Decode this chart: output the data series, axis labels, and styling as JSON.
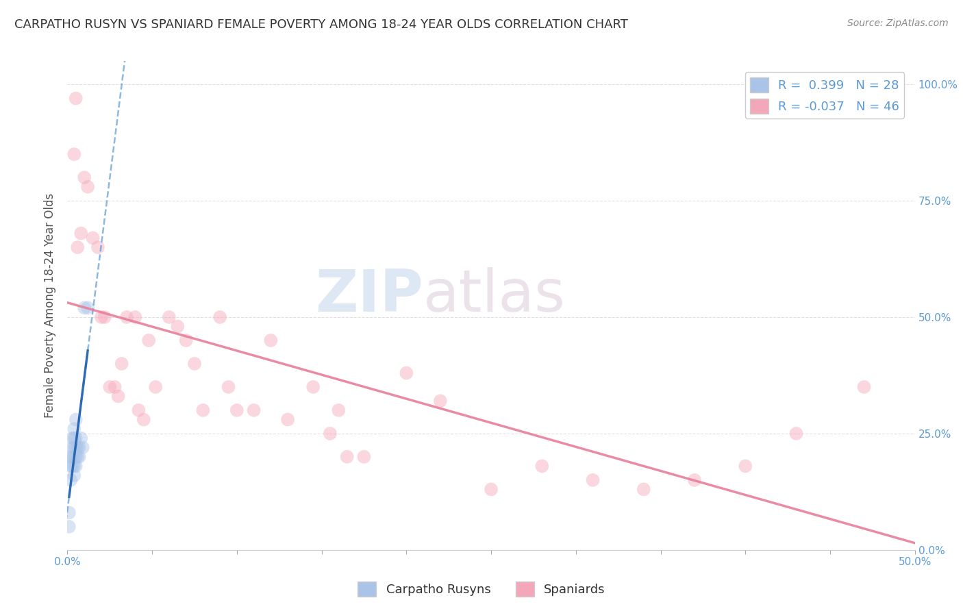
{
  "title": "CARPATHO RUSYN VS SPANIARD FEMALE POVERTY AMONG 18-24 YEAR OLDS CORRELATION CHART",
  "source": "Source: ZipAtlas.com",
  "ylabel": "Female Poverty Among 18-24 Year Olds",
  "xlim": [
    0.0,
    0.5
  ],
  "ylim": [
    0.0,
    1.05
  ],
  "xticks": [
    0.0,
    0.05,
    0.1,
    0.15,
    0.2,
    0.25,
    0.3,
    0.35,
    0.4,
    0.45,
    0.5
  ],
  "xticklabels_show": {
    "0.0": "0.0%",
    "0.5": "50.0%"
  },
  "yticks": [
    0.0,
    0.25,
    0.5,
    0.75,
    1.0
  ],
  "yticklabels_right": [
    "0.0%",
    "25.0%",
    "50.0%",
    "75.0%",
    "100.0%"
  ],
  "carpatho_rusyns": {
    "color": "#aac4e8",
    "x": [
      0.001,
      0.001,
      0.002,
      0.002,
      0.002,
      0.003,
      0.003,
      0.003,
      0.003,
      0.004,
      0.004,
      0.004,
      0.004,
      0.004,
      0.004,
      0.005,
      0.005,
      0.005,
      0.005,
      0.005,
      0.006,
      0.006,
      0.007,
      0.007,
      0.008,
      0.009,
      0.01,
      0.012
    ],
    "y": [
      0.05,
      0.08,
      0.15,
      0.18,
      0.2,
      0.18,
      0.2,
      0.22,
      0.24,
      0.16,
      0.18,
      0.2,
      0.22,
      0.24,
      0.26,
      0.18,
      0.2,
      0.22,
      0.24,
      0.28,
      0.2,
      0.22,
      0.2,
      0.22,
      0.24,
      0.22,
      0.52,
      0.52
    ]
  },
  "spaniards": {
    "color": "#f4a7b9",
    "x": [
      0.004,
      0.005,
      0.006,
      0.008,
      0.01,
      0.012,
      0.015,
      0.018,
      0.02,
      0.022,
      0.025,
      0.028,
      0.03,
      0.032,
      0.035,
      0.04,
      0.042,
      0.045,
      0.048,
      0.052,
      0.06,
      0.065,
      0.07,
      0.075,
      0.08,
      0.09,
      0.095,
      0.1,
      0.11,
      0.12,
      0.13,
      0.145,
      0.155,
      0.16,
      0.165,
      0.175,
      0.2,
      0.22,
      0.25,
      0.28,
      0.31,
      0.34,
      0.37,
      0.4,
      0.43,
      0.47
    ],
    "y": [
      0.85,
      0.97,
      0.65,
      0.68,
      0.8,
      0.78,
      0.67,
      0.65,
      0.5,
      0.5,
      0.35,
      0.35,
      0.33,
      0.4,
      0.5,
      0.5,
      0.3,
      0.28,
      0.45,
      0.35,
      0.5,
      0.48,
      0.45,
      0.4,
      0.3,
      0.5,
      0.35,
      0.3,
      0.3,
      0.45,
      0.28,
      0.35,
      0.25,
      0.3,
      0.2,
      0.2,
      0.38,
      0.32,
      0.13,
      0.18,
      0.15,
      0.13,
      0.15,
      0.18,
      0.25,
      0.35
    ]
  },
  "trend_blue_color": "#5b9bd5",
  "trend_pink_color": "#e87f9a",
  "watermark_zip": "ZIP",
  "watermark_atlas": "atlas",
  "background_color": "#ffffff",
  "grid_color": "#e0e0e0",
  "title_fontsize": 13,
  "axis_label_fontsize": 12,
  "tick_fontsize": 11,
  "dot_size": 200,
  "dot_alpha": 0.45
}
